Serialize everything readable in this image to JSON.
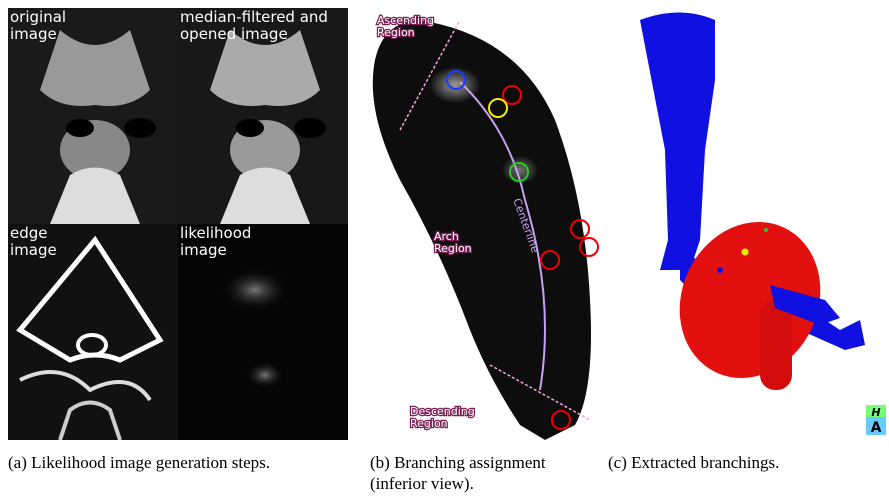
{
  "panel_a": {
    "images": [
      "original image",
      "median-filtered and opened image",
      "edge image",
      "likelihood image"
    ],
    "caption": "(a) Likelihood image generation steps."
  },
  "panel_b": {
    "regions": [
      "Ascending Region",
      "Arch Region",
      "Descending Region"
    ],
    "centerline_label": "Centerline",
    "caption": "(b) Branching assignment (inferior view)."
  },
  "panel_c": {
    "orientation_cube": [
      "H",
      "A"
    ],
    "caption": "(c) Extracted branchings."
  }
}
